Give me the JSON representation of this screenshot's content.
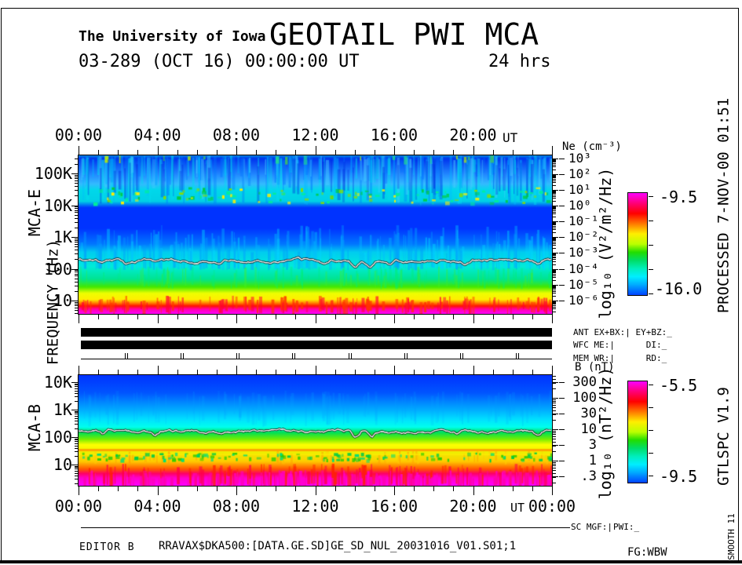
{
  "header": {
    "institution": "The University of Iowa",
    "title": "GEOTAIL PWI MCA",
    "date_line": "03-289 (OCT 16) 00:00:00 UT",
    "duration": "24 hrs"
  },
  "status": {
    "row_ant": "ANT EX+BX:| EY+BZ:_",
    "row_wfc": "WFC ME:|      DI:_",
    "row_mem": "MEM WR:|      RD:_",
    "sc": "SC MGF:|",
    "pwi": "PWI:_"
  },
  "side_margin": {
    "processed": "PROCESSED  7-NOV-00  01:51",
    "version": "GTLSPC   V1.9",
    "smooth": "SMOOTH 11"
  },
  "footer": {
    "editor": "EDITOR B",
    "file": "RRAVAX$DKA500:[DATA.GE.SD]GE_SD_NUL_20031016_V01.S01;1",
    "fg": "FG:WBW"
  },
  "chart_data": [
    {
      "type": "heatmap",
      "name": "MCA-E",
      "quantity": "Electric field power spectral density spectrogram, 24 hours",
      "x_axis": {
        "label": "UT",
        "suffix": "UT",
        "hours": [
          0,
          24
        ],
        "tick_labels": [
          "00:00",
          "04:00",
          "08:00",
          "12:00",
          "16:00",
          "20:00"
        ],
        "major_tick_hours": 4,
        "minor_tick_hours": 1
      },
      "y_axis": {
        "panel": "MCA-E",
        "label": "FREQUENCY (Hz)",
        "scale": "log",
        "tick_labels": [
          "100K",
          "10K",
          "1K",
          "100",
          "10"
        ]
      },
      "right_axis": {
        "label": "Ne (cm⁻³)",
        "tick_labels": [
          "10³",
          "10²",
          "10¹",
          "10⁰",
          "10⁻¹",
          "10⁻²",
          "10⁻³",
          "10⁻⁴",
          "10⁻⁵",
          "10⁻⁶"
        ]
      },
      "colorbar": {
        "label": "log₁₀ (V²/m²/Hz)",
        "max": -9.5,
        "min": -16.0,
        "tick_values": [
          "-9.5",
          "-16.0"
        ]
      },
      "overlay_trace": {
        "description": "white electron-density (Ne) trace, nearly flat near 200 Hz with dip near 14:00 UT",
        "color": "#ffffff"
      },
      "features": [
        "streaky blue/cyan emissions above ~10 kHz",
        "band of green-yellow dots near 10-20 kHz",
        "solid dark-blue quiet band 1-10 kHz",
        "cyan band below white Ne trace",
        "intense green/yellow/red/magenta banding below 100 Hz"
      ],
      "render": {
        "seed": 1234,
        "bands": [
          [
            0,
            "#0088dd"
          ],
          [
            0.02,
            "#0033ee"
          ],
          [
            0.12,
            "#2288ff"
          ],
          [
            0.18,
            "#33bbff"
          ],
          [
            0.22,
            "#00d8ea"
          ],
          [
            0.29,
            "#00d0e6"
          ],
          [
            0.33,
            "#0033ff"
          ],
          [
            0.46,
            "#0033ff"
          ],
          [
            0.56,
            "#0077ff"
          ],
          [
            0.61,
            "#00ccf0"
          ],
          [
            0.7,
            "#00ecd8"
          ],
          [
            0.78,
            "#00e492"
          ],
          [
            0.83,
            "#44e800"
          ],
          [
            0.87,
            "#eeff00"
          ],
          [
            0.91,
            "#ffee00"
          ],
          [
            0.93,
            "#ff8800"
          ],
          [
            0.95,
            "#ff1100"
          ],
          [
            0.97,
            "#ff00aa"
          ],
          [
            1,
            "#ff00ff"
          ]
        ],
        "streaks": [
          {
            "from": [
              0.0,
              0.03
            ],
            "to": [
              0.1,
              0.31
            ],
            "colors": [
              "#00bbff",
              "#44ccff",
              "#0077ff",
              "#00ddee"
            ],
            "count": 260,
            "width": 3,
            "alpha": 0.5
          },
          {
            "from": [
              0.0,
              0.01
            ],
            "to": [
              0.02,
              0.07
            ],
            "colors": [
              "#44cc55",
              "#bbee00",
              "#22dd88"
            ],
            "count": 16,
            "width": 4,
            "alpha": 0.9
          },
          {
            "from": [
              0.02,
              0.1
            ],
            "to": [
              0.2,
              0.3
            ],
            "colors": [
              "#0022dd"
            ],
            "count": 50,
            "width": 3,
            "alpha": 0.4
          },
          {
            "from": [
              0.7,
              0.72
            ],
            "to": [
              0.44,
              0.62
            ],
            "colors": [
              "#00bbff",
              "#0099ff",
              "#00d5ff"
            ],
            "count": 200,
            "width": 3,
            "alpha": 0.5
          },
          {
            "from": [
              0.8,
              0.84
            ],
            "to": [
              0.7,
              0.76
            ],
            "colors": [
              "#00ee77",
              "#44ee22"
            ],
            "count": 110,
            "width": 2,
            "alpha": 0.45
          },
          {
            "from": [
              0.96,
              1.0
            ],
            "to": [
              0.885,
              0.93
            ],
            "colors": [
              "#ff3300",
              "#ff0033"
            ],
            "count": 140,
            "width": 3,
            "alpha": 0.75
          }
        ],
        "dots": [
          {
            "frac": 0.25,
            "spread": 0.05,
            "colors": [
              "#00cc44",
              "#88dd00",
              "#ffee00",
              "#00ee99"
            ],
            "count": 120
          }
        ],
        "hlines": [],
        "trace": {
          "base_frac": 0.663,
          "seed": 7,
          "dips": [
            [
              0.05,
              4
            ],
            [
              0.1,
              5
            ],
            [
              0.3,
              3
            ],
            [
              0.52,
              4
            ],
            [
              0.585,
              9
            ],
            [
              0.615,
              7
            ],
            [
              0.655,
              5
            ],
            [
              0.82,
              3
            ],
            [
              0.97,
              6
            ]
          ]
        },
        "colorbar_stops": [
          [
            0,
            "#ff00ff"
          ],
          [
            0.1,
            "#ff0077"
          ],
          [
            0.2,
            "#ff0000"
          ],
          [
            0.3,
            "#ff7700"
          ],
          [
            0.4,
            "#ffee00"
          ],
          [
            0.5,
            "#bbff00"
          ],
          [
            0.58,
            "#22dd00"
          ],
          [
            0.66,
            "#00dd66"
          ],
          [
            0.74,
            "#00eebb"
          ],
          [
            0.82,
            "#00eeff"
          ],
          [
            0.9,
            "#00aaff"
          ],
          [
            1,
            "#0044ff"
          ]
        ]
      }
    },
    {
      "type": "heatmap",
      "name": "MCA-B",
      "quantity": "Magnetic field power spectral density spectrogram, 24 hours",
      "x_axis": {
        "label": "UT",
        "suffix": "UT",
        "hours": [
          0,
          24
        ],
        "tick_labels": [
          "00:00",
          "04:00",
          "08:00",
          "12:00",
          "16:00",
          "20:00",
          "00:00"
        ],
        "major_tick_hours": 4,
        "minor_tick_hours": 1
      },
      "y_axis": {
        "panel": "MCA-B",
        "label": "FREQUENCY (Hz)",
        "scale": "log",
        "tick_labels": [
          "10K",
          "1K",
          "100",
          "10"
        ]
      },
      "right_axis": {
        "label": "B (nT)",
        "tick_labels": [
          "300",
          "100",
          "30",
          "10",
          "3",
          "1",
          ".3"
        ]
      },
      "colorbar": {
        "label": "log₁₀ (nT²/Hz)",
        "max": -5.5,
        "min": -9.5,
        "tick_values": [
          "-5.5",
          "-9.5"
        ]
      },
      "overlay_trace": {
        "description": "white |B| magnitude trace, nearly flat near 200 Hz level with dip near 14:00 UT",
        "color": "#ffffff"
      },
      "features": [
        "smooth blue-to-cyan background above white trace",
        "green band just below white trace",
        "yellow band with thin orange stripe and green dotted lane",
        "jagged red/magenta intense emission below ~30 Hz"
      ],
      "render": {
        "seed": 99,
        "bands": [
          [
            0,
            "#0033ff"
          ],
          [
            0.16,
            "#0055ff"
          ],
          [
            0.31,
            "#00aaff"
          ],
          [
            0.4,
            "#00e0ff"
          ],
          [
            0.47,
            "#00ffee"
          ],
          [
            0.52,
            "#00e055"
          ],
          [
            0.58,
            "#77ee00"
          ],
          [
            0.63,
            "#ffff00"
          ],
          [
            0.7,
            "#eeee00"
          ],
          [
            0.78,
            "#ffcc00"
          ],
          [
            0.85,
            "#ff5500"
          ],
          [
            0.89,
            "#ff0066"
          ],
          [
            0.93,
            "#ff00cc"
          ],
          [
            1,
            "#ff00ff"
          ]
        ],
        "streaks": [
          {
            "from": [
              0.14,
              0.2
            ],
            "to": [
              0.34,
              0.46
            ],
            "colors": [
              "#00aaff",
              "#0099ff"
            ],
            "count": 90,
            "width": 3,
            "alpha": 0.22
          },
          {
            "from": [
              0.97,
              1.0
            ],
            "to": [
              0.8,
              0.91
            ],
            "colors": [
              "#ff2200",
              "#ff0044"
            ],
            "count": 150,
            "width": 3,
            "alpha": 0.8
          },
          {
            "from": [
              0.99,
              1.0
            ],
            "to": [
              0.86,
              0.94
            ],
            "colors": [
              "#ff00cc",
              "#ff00aa"
            ],
            "count": 130,
            "width": 4,
            "alpha": 0.9
          },
          {
            "from": [
              0.76,
              0.8
            ],
            "to": [
              0.68,
              0.73
            ],
            "colors": [
              "#ff9900",
              "#ffcc00"
            ],
            "count": 70,
            "width": 2,
            "alpha": 0.5
          }
        ],
        "dots": [
          {
            "frac": 0.73,
            "spread": 0.03,
            "colors": [
              "#00cc44",
              "#33cc00",
              "#00dd77"
            ],
            "count": 140
          }
        ],
        "hlines": [
          {
            "frac": 0.667,
            "color": "#ff9900",
            "h": 3,
            "alpha": 0.85
          },
          {
            "frac": 0.71,
            "color": "#ffee00",
            "h": 2,
            "alpha": 0.6
          }
        ],
        "trace": {
          "base_frac": 0.51,
          "seed": 8,
          "dips": [
            [
              0.05,
              4
            ],
            [
              0.16,
              5
            ],
            [
              0.3,
              3
            ],
            [
              0.585,
              9
            ],
            [
              0.62,
              6
            ],
            [
              0.8,
              3
            ],
            [
              0.97,
              7
            ]
          ]
        },
        "colorbar_stops": [
          [
            0,
            "#ff00ff"
          ],
          [
            0.1,
            "#ff0077"
          ],
          [
            0.2,
            "#ff0000"
          ],
          [
            0.3,
            "#ff7700"
          ],
          [
            0.4,
            "#ffee00"
          ],
          [
            0.5,
            "#bbff00"
          ],
          [
            0.58,
            "#22dd00"
          ],
          [
            0.66,
            "#00dd66"
          ],
          [
            0.74,
            "#00eebb"
          ],
          [
            0.82,
            "#00eeff"
          ],
          [
            0.9,
            "#00aaff"
          ],
          [
            1,
            "#0044ff"
          ]
        ]
      }
    }
  ]
}
